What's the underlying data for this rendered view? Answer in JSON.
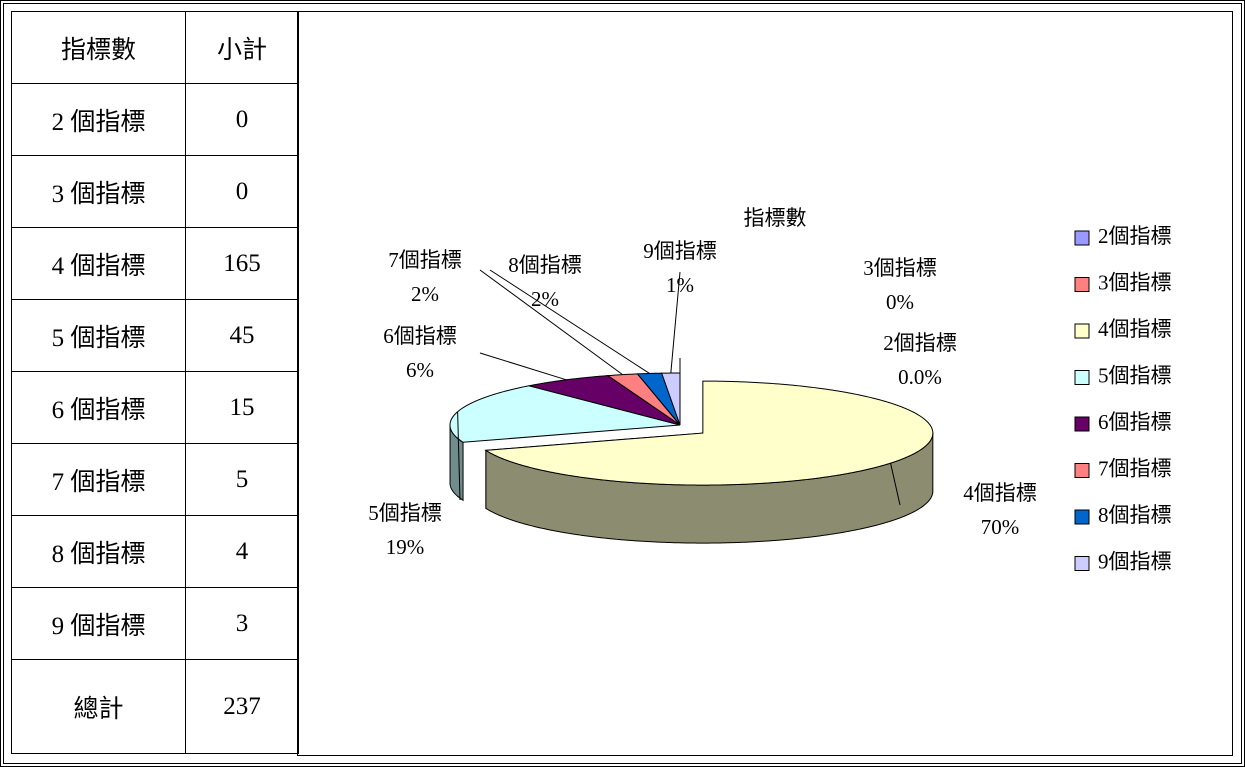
{
  "table": {
    "header": [
      "指標數",
      "小計"
    ],
    "rows": [
      [
        "2 個指標",
        0
      ],
      [
        "3 個指標",
        0
      ],
      [
        "4 個指標",
        165
      ],
      [
        "5 個指標",
        45
      ],
      [
        "6 個指標",
        15
      ],
      [
        "7 個指標",
        5
      ],
      [
        "8 個指標",
        4
      ],
      [
        "9 個指標",
        3
      ]
    ],
    "total": [
      "總計",
      237
    ]
  },
  "chart_data": {
    "type": "pie",
    "title": "指標數",
    "categories": [
      "2個指標",
      "3個指標",
      "4個指標",
      "5個指標",
      "6個指標",
      "7個指標",
      "8個指標",
      "9個指標"
    ],
    "values": [
      0,
      0,
      69.62,
      18.99,
      6.33,
      2.11,
      1.69,
      1.27
    ],
    "value_labels": [
      "0.0%",
      "0%",
      "70%",
      "19%",
      "6%",
      "2%",
      "2%",
      "1%"
    ],
    "colors": [
      "#9999ff",
      "#ff8080",
      "#ffffcc",
      "#ccffff",
      "#660066",
      "#ff8080",
      "#0066cc",
      "#ccccff"
    ],
    "legend": "right"
  }
}
